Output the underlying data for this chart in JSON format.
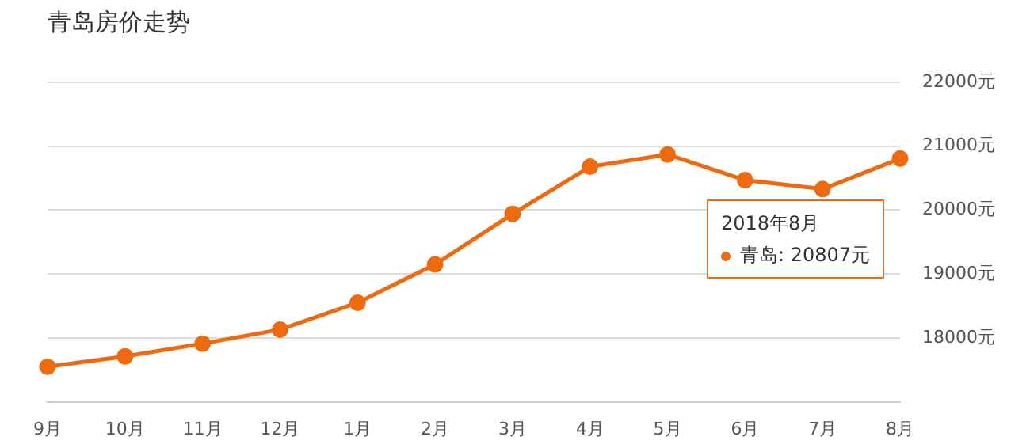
{
  "chart_data": {
    "type": "line",
    "title": "青岛房价走势",
    "categories": [
      "9月",
      "10月",
      "11月",
      "12月",
      "1月",
      "2月",
      "3月",
      "4月",
      "5月",
      "6月",
      "7月",
      "8月"
    ],
    "series": [
      {
        "color": "#ee6a10",
        "values": [
          17550,
          17710,
          17910,
          18130,
          18550,
          19150,
          19940,
          20680,
          20870,
          20470,
          20330,
          20807
        ]
      }
    ],
    "ylim": [
      17000,
      22000
    ],
    "yticks": [
      {
        "value": 17000,
        "label": null
      },
      {
        "value": 18000,
        "label": "18000元"
      },
      {
        "value": 19000,
        "label": "19000元"
      },
      {
        "value": 20000,
        "label": "20000元"
      },
      {
        "value": 21000,
        "label": "21000元"
      },
      {
        "value": 22000,
        "label": "22000元"
      }
    ],
    "grid": "y",
    "marker": "circle",
    "line_style": "solid",
    "legend": false,
    "annotations": [
      "2018年8月",
      "青岛: 20807元"
    ]
  }
}
